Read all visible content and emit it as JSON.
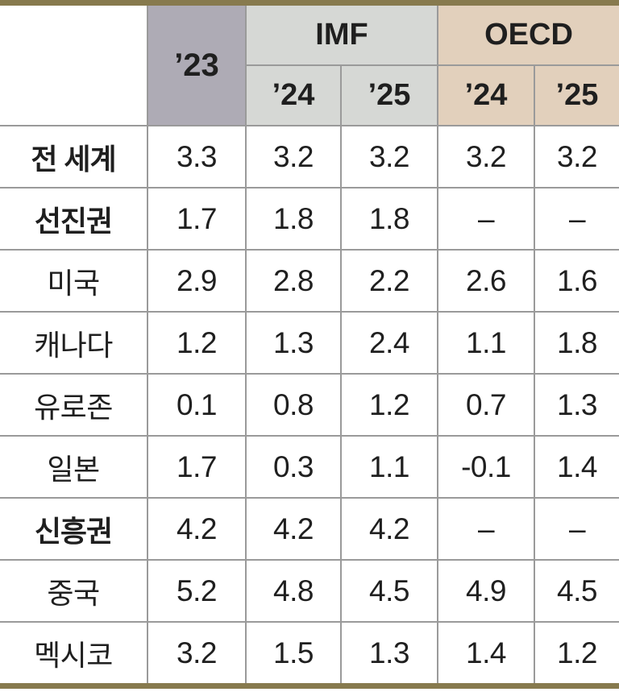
{
  "chart_data": {
    "type": "table",
    "title": "",
    "header": {
      "col_23": "’23",
      "imf": "IMF",
      "oecd": "OECD",
      "imf_24": "’24",
      "imf_25": "’25",
      "oecd_24": "’24",
      "oecd_25": "’25"
    },
    "columns": [
      "region",
      "’23",
      "IMF ’24",
      "IMF ’25",
      "OECD ’24",
      "OECD ’25"
    ],
    "rows": [
      {
        "label": "전 세계",
        "group": true,
        "values": [
          "3.3",
          "3.2",
          "3.2",
          "3.2",
          "3.2"
        ]
      },
      {
        "label": "선진권",
        "group": true,
        "values": [
          "1.7",
          "1.8",
          "1.8",
          "–",
          "–"
        ]
      },
      {
        "label": "미국",
        "group": false,
        "values": [
          "2.9",
          "2.8",
          "2.2",
          "2.6",
          "1.6"
        ]
      },
      {
        "label": "캐나다",
        "group": false,
        "values": [
          "1.2",
          "1.3",
          "2.4",
          "1.1",
          "1.8"
        ]
      },
      {
        "label": "유로존",
        "group": false,
        "values": [
          "0.1",
          "0.8",
          "1.2",
          "0.7",
          "1.3"
        ]
      },
      {
        "label": "일본",
        "group": false,
        "values": [
          "1.7",
          "0.3",
          "1.1",
          "-0.1",
          "1.4"
        ]
      },
      {
        "label": "신흥권",
        "group": true,
        "values": [
          "4.2",
          "4.2",
          "4.2",
          "–",
          "–"
        ]
      },
      {
        "label": "중국",
        "group": false,
        "values": [
          "5.2",
          "4.8",
          "4.5",
          "4.9",
          "4.5"
        ]
      },
      {
        "label": "멕시코",
        "group": false,
        "values": [
          "3.2",
          "1.5",
          "1.3",
          "1.4",
          "1.2"
        ]
      }
    ]
  },
  "colors": {
    "header_23_bg": "#aeabb5",
    "imf_bg": "#d6d8d5",
    "oecd_bg": "#e2d0bc",
    "accent_rule": "#877a4e",
    "grid_line": "#9a9a9a",
    "text": "#1f1f1f"
  }
}
